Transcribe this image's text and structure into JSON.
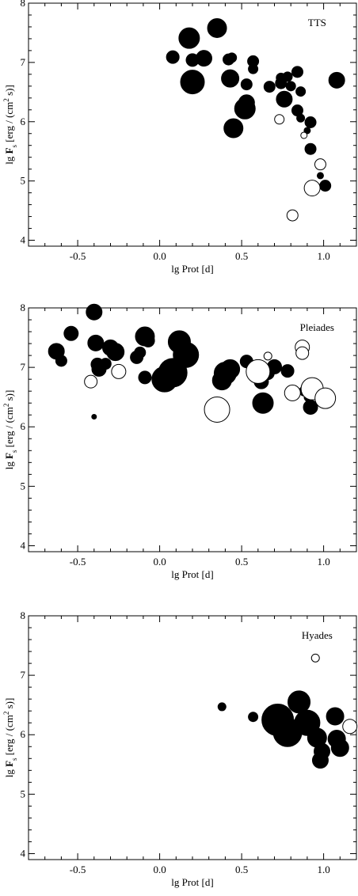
{
  "chart_data": [
    {
      "type": "scatter",
      "title": "TTS",
      "xlabel": "lg Prot [d]",
      "ylabel": "lg F_s [erg / (cm^2 s)]",
      "ylabel_parts": {
        "prefix": "lg ",
        "main": "F",
        "sub": "s",
        "unit_open": " [erg / (cm",
        "sup": "2",
        "unit_close": " s)]"
      },
      "xlim": [
        -0.8,
        1.2
      ],
      "ylim": [
        3.9,
        8.0
      ],
      "xticks": [
        -0.5,
        0.0,
        0.5,
        1.0
      ],
      "xtick_labels": [
        "-0.5",
        "0.0",
        "0.5",
        "1.0"
      ],
      "yticks": [
        4,
        5,
        6,
        7,
        8
      ],
      "ytick_labels": [
        "4",
        "5",
        "6",
        "7",
        "8"
      ],
      "points": [
        {
          "x": 0.08,
          "y": 7.09,
          "r": 8,
          "filled": true
        },
        {
          "x": 0.18,
          "y": 7.41,
          "r": 13,
          "filled": true
        },
        {
          "x": 0.2,
          "y": 7.04,
          "r": 8,
          "filled": true
        },
        {
          "x": 0.2,
          "y": 6.67,
          "r": 15,
          "filled": true
        },
        {
          "x": 0.27,
          "y": 7.07,
          "r": 10,
          "filled": true
        },
        {
          "x": 0.35,
          "y": 7.58,
          "r": 12,
          "filled": true
        },
        {
          "x": 0.42,
          "y": 7.05,
          "r": 7,
          "filled": true
        },
        {
          "x": 0.44,
          "y": 7.08,
          "r": 6,
          "filled": true
        },
        {
          "x": 0.43,
          "y": 6.73,
          "r": 11,
          "filled": true
        },
        {
          "x": 0.53,
          "y": 6.63,
          "r": 7,
          "filled": true
        },
        {
          "x": 0.57,
          "y": 7.02,
          "r": 7,
          "filled": true
        },
        {
          "x": 0.57,
          "y": 6.89,
          "r": 6,
          "filled": true
        },
        {
          "x": 0.53,
          "y": 6.32,
          "r": 10,
          "filled": true
        },
        {
          "x": 0.52,
          "y": 6.22,
          "r": 13,
          "filled": true
        },
        {
          "x": 0.45,
          "y": 5.89,
          "r": 12,
          "filled": true
        },
        {
          "x": 0.67,
          "y": 6.59,
          "r": 7,
          "filled": true
        },
        {
          "x": 0.74,
          "y": 6.74,
          "r": 6,
          "filled": true
        },
        {
          "x": 0.74,
          "y": 6.65,
          "r": 7,
          "filled": true
        },
        {
          "x": 0.78,
          "y": 6.76,
          "r": 6,
          "filled": true
        },
        {
          "x": 0.8,
          "y": 6.6,
          "r": 6,
          "filled": true
        },
        {
          "x": 0.84,
          "y": 6.84,
          "r": 7,
          "filled": true
        },
        {
          "x": 0.76,
          "y": 6.38,
          "r": 10,
          "filled": true
        },
        {
          "x": 0.86,
          "y": 6.51,
          "r": 6,
          "filled": true
        },
        {
          "x": 0.84,
          "y": 6.19,
          "r": 7,
          "filled": true
        },
        {
          "x": 0.86,
          "y": 6.06,
          "r": 5,
          "filled": true
        },
        {
          "x": 0.92,
          "y": 5.99,
          "r": 7,
          "filled": true
        },
        {
          "x": 0.9,
          "y": 5.85,
          "r": 4,
          "filled": true
        },
        {
          "x": 0.92,
          "y": 5.54,
          "r": 7,
          "filled": true
        },
        {
          "x": 0.98,
          "y": 5.09,
          "r": 4,
          "filled": true
        },
        {
          "x": 1.01,
          "y": 4.92,
          "r": 7,
          "filled": true
        },
        {
          "x": 1.08,
          "y": 6.7,
          "r": 10,
          "filled": true
        },
        {
          "x": 0.73,
          "y": 6.04,
          "r": 6,
          "filled": false
        },
        {
          "x": 0.88,
          "y": 5.77,
          "r": 4,
          "filled": false
        },
        {
          "x": 0.98,
          "y": 5.28,
          "r": 7,
          "filled": false
        },
        {
          "x": 0.93,
          "y": 4.88,
          "r": 10,
          "filled": false
        },
        {
          "x": 0.81,
          "y": 4.42,
          "r": 7,
          "filled": false
        }
      ]
    },
    {
      "type": "scatter",
      "title": "Pleiades",
      "xlabel": "lg Prot [d]",
      "ylabel": "lg F_s [erg / (cm^2 s)]",
      "ylabel_parts": {
        "prefix": "lg ",
        "main": "F",
        "sub": "s",
        "unit_open": " [erg / (cm",
        "sup": "2",
        "unit_close": " s)]"
      },
      "xlim": [
        -0.8,
        1.2
      ],
      "ylim": [
        3.9,
        8.0
      ],
      "xticks": [
        -0.5,
        0.0,
        0.5,
        1.0
      ],
      "xtick_labels": [
        "-0.5",
        "0.0",
        "0.5",
        "1.0"
      ],
      "yticks": [
        4,
        5,
        6,
        7,
        8
      ],
      "ytick_labels": [
        "4",
        "5",
        "6",
        "7",
        "8"
      ],
      "points": [
        {
          "x": -0.63,
          "y": 7.27,
          "r": 10,
          "filled": true
        },
        {
          "x": -0.6,
          "y": 7.11,
          "r": 7,
          "filled": true
        },
        {
          "x": -0.54,
          "y": 7.57,
          "r": 9,
          "filled": true
        },
        {
          "x": -0.4,
          "y": 7.93,
          "r": 10,
          "filled": true
        },
        {
          "x": -0.39,
          "y": 7.41,
          "r": 10,
          "filled": true
        },
        {
          "x": -0.38,
          "y": 7.05,
          "r": 8,
          "filled": true
        },
        {
          "x": -0.37,
          "y": 6.97,
          "r": 9,
          "filled": true
        },
        {
          "x": -0.33,
          "y": 7.06,
          "r": 7,
          "filled": true
        },
        {
          "x": -0.3,
          "y": 7.33,
          "r": 10,
          "filled": true
        },
        {
          "x": -0.27,
          "y": 7.26,
          "r": 11,
          "filled": true
        },
        {
          "x": -0.14,
          "y": 7.17,
          "r": 8,
          "filled": true
        },
        {
          "x": -0.12,
          "y": 7.25,
          "r": 7,
          "filled": true
        },
        {
          "x": -0.09,
          "y": 7.52,
          "r": 12,
          "filled": true
        },
        {
          "x": -0.07,
          "y": 7.45,
          "r": 8,
          "filled": true
        },
        {
          "x": -0.09,
          "y": 6.83,
          "r": 8,
          "filled": true
        },
        {
          "x": 0.03,
          "y": 6.8,
          "r": 16,
          "filled": true
        },
        {
          "x": 0.08,
          "y": 6.91,
          "r": 18,
          "filled": true
        },
        {
          "x": 0.12,
          "y": 7.43,
          "r": 14,
          "filled": true
        },
        {
          "x": 0.16,
          "y": 7.21,
          "r": 16,
          "filled": true
        },
        {
          "x": -0.4,
          "y": 6.17,
          "r": 3,
          "filled": true
        },
        {
          "x": 0.38,
          "y": 6.78,
          "r": 12,
          "filled": true
        },
        {
          "x": 0.4,
          "y": 6.9,
          "r": 14,
          "filled": true
        },
        {
          "x": 0.43,
          "y": 6.97,
          "r": 12,
          "filled": true
        },
        {
          "x": 0.53,
          "y": 7.1,
          "r": 8,
          "filled": true
        },
        {
          "x": 0.62,
          "y": 6.76,
          "r": 9,
          "filled": true
        },
        {
          "x": 0.63,
          "y": 6.4,
          "r": 13,
          "filled": true
        },
        {
          "x": 0.66,
          "y": 6.9,
          "r": 8,
          "filled": true
        },
        {
          "x": 0.7,
          "y": 7.01,
          "r": 9,
          "filled": true
        },
        {
          "x": 0.78,
          "y": 6.94,
          "r": 8,
          "filled": true
        },
        {
          "x": 0.88,
          "y": 6.6,
          "r": 6,
          "filled": true
        },
        {
          "x": 0.91,
          "y": 6.5,
          "r": 6,
          "filled": true
        },
        {
          "x": 0.92,
          "y": 6.33,
          "r": 9,
          "filled": true
        },
        {
          "x": -0.42,
          "y": 6.76,
          "r": 8,
          "filled": false
        },
        {
          "x": -0.25,
          "y": 6.93,
          "r": 9,
          "filled": false
        },
        {
          "x": 0.35,
          "y": 6.29,
          "r": 16,
          "filled": false
        },
        {
          "x": 0.6,
          "y": 6.93,
          "r": 15,
          "filled": false
        },
        {
          "x": 0.66,
          "y": 7.19,
          "r": 5,
          "filled": false
        },
        {
          "x": 0.81,
          "y": 6.57,
          "r": 10,
          "filled": false
        },
        {
          "x": 0.87,
          "y": 7.34,
          "r": 9,
          "filled": false
        },
        {
          "x": 0.87,
          "y": 7.24,
          "r": 8,
          "filled": false
        },
        {
          "x": 0.93,
          "y": 6.64,
          "r": 14,
          "filled": false
        },
        {
          "x": 1.01,
          "y": 6.48,
          "r": 13,
          "filled": false
        }
      ]
    },
    {
      "type": "scatter",
      "title": "Hyades",
      "xlabel": "lg Prot [d]",
      "ylabel": "lg F_s [erg / (cm^2 s)]",
      "ylabel_parts": {
        "prefix": "lg ",
        "main": "F",
        "sub": "s",
        "unit_open": " [erg / (cm",
        "sup": "2",
        "unit_close": " s)]"
      },
      "xlim": [
        -0.8,
        1.2
      ],
      "ylim": [
        3.9,
        8.0
      ],
      "xticks": [
        -0.5,
        0.0,
        0.5,
        1.0
      ],
      "xtick_labels": [
        "-0.5",
        "0.0",
        "0.5",
        "1.0"
      ],
      "yticks": [
        4,
        5,
        6,
        7,
        8
      ],
      "ytick_labels": [
        "4",
        "5",
        "6",
        "7",
        "8"
      ],
      "points": [
        {
          "x": 0.38,
          "y": 6.47,
          "r": 5,
          "filled": true
        },
        {
          "x": 0.57,
          "y": 6.3,
          "r": 6,
          "filled": true
        },
        {
          "x": 0.72,
          "y": 6.25,
          "r": 20,
          "filled": true
        },
        {
          "x": 0.78,
          "y": 6.04,
          "r": 18,
          "filled": true
        },
        {
          "x": 0.85,
          "y": 6.55,
          "r": 14,
          "filled": true
        },
        {
          "x": 0.9,
          "y": 6.2,
          "r": 16,
          "filled": true
        },
        {
          "x": 0.96,
          "y": 5.95,
          "r": 12,
          "filled": true
        },
        {
          "x": 0.99,
          "y": 5.72,
          "r": 10,
          "filled": true
        },
        {
          "x": 0.98,
          "y": 5.57,
          "r": 10,
          "filled": true
        },
        {
          "x": 1.07,
          "y": 6.31,
          "r": 11,
          "filled": true
        },
        {
          "x": 1.08,
          "y": 5.93,
          "r": 11,
          "filled": true
        },
        {
          "x": 1.1,
          "y": 5.78,
          "r": 11,
          "filled": true
        },
        {
          "x": 0.95,
          "y": 7.29,
          "r": 5,
          "filled": false
        },
        {
          "x": 1.16,
          "y": 6.14,
          "r": 9,
          "filled": false
        }
      ]
    }
  ]
}
